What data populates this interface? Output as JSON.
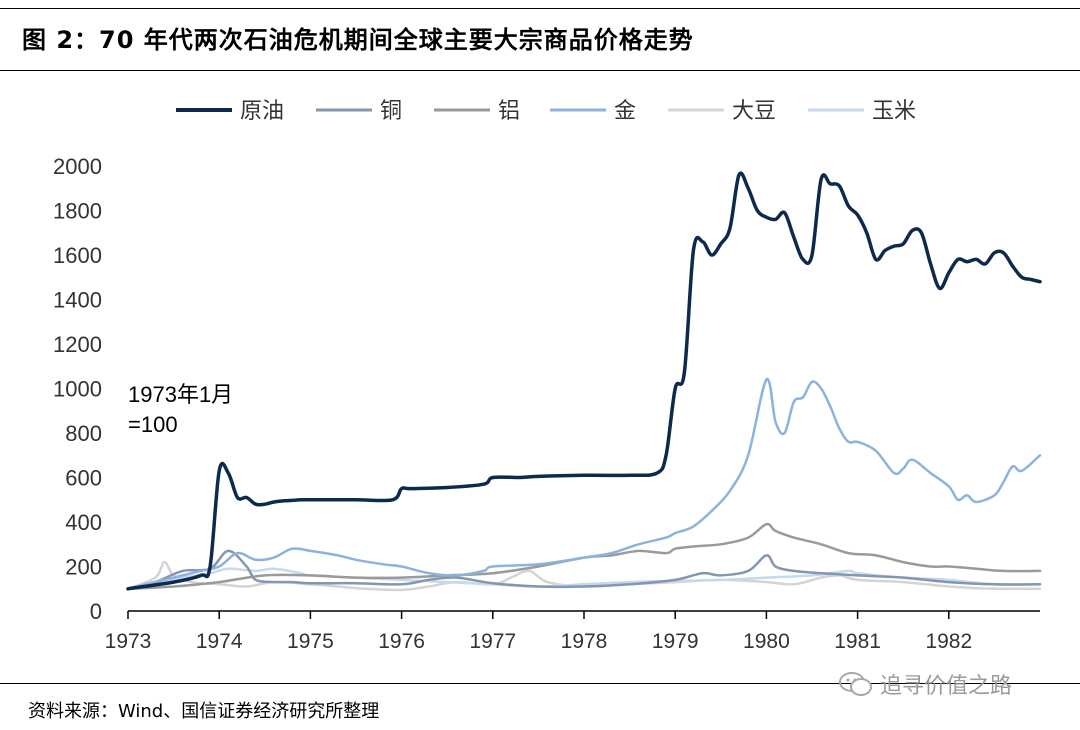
{
  "figure": {
    "title": "图 2：70 年代两次石油危机期间全球主要大宗商品价格走势",
    "source": "资料来源：Wind、国信证券经济研究所整理",
    "watermark": "追寻价值之路"
  },
  "chart_data": {
    "type": "line",
    "title": "",
    "xlabel": "",
    "ylabel": "",
    "xlim": [
      1973,
      1983
    ],
    "ylim": [
      0,
      2000
    ],
    "yticks": [
      0,
      200,
      400,
      600,
      800,
      1000,
      1200,
      1400,
      1600,
      1800,
      2000
    ],
    "xticks": [
      1973,
      1974,
      1975,
      1976,
      1977,
      1978,
      1979,
      1980,
      1981,
      1982
    ],
    "grid": false,
    "legend": "top",
    "annotation": [
      "1973年1月",
      "=100"
    ],
    "series": [
      {
        "name": "原油",
        "color": "#0d2a4d",
        "width": 3.5,
        "x": [
          1973.0,
          1973.5,
          1973.8,
          1973.9,
          1974.0,
          1974.1,
          1974.2,
          1974.3,
          1974.4,
          1974.5,
          1974.6,
          1974.7,
          1974.8,
          1974.9,
          1975.0,
          1975.5,
          1975.9,
          1976.0,
          1976.1,
          1976.5,
          1976.9,
          1977.0,
          1977.3,
          1977.5,
          1978.0,
          1978.5,
          1978.8,
          1978.9,
          1979.0,
          1979.1,
          1979.2,
          1979.3,
          1979.4,
          1979.5,
          1979.6,
          1979.7,
          1979.8,
          1979.9,
          1980.0,
          1980.1,
          1980.2,
          1980.3,
          1980.4,
          1980.5,
          1980.6,
          1980.7,
          1980.8,
          1980.9,
          1981.0,
          1981.1,
          1981.2,
          1981.3,
          1981.4,
          1981.5,
          1981.6,
          1981.7,
          1981.8,
          1981.9,
          1982.0,
          1982.1,
          1982.2,
          1982.3,
          1982.4,
          1982.5,
          1982.6,
          1982.7,
          1982.8,
          1982.9,
          1983.0
        ],
        "y": [
          100,
          130,
          160,
          200,
          630,
          620,
          510,
          510,
          480,
          480,
          490,
          495,
          497,
          500,
          500,
          500,
          500,
          550,
          550,
          555,
          570,
          600,
          600,
          605,
          610,
          610,
          620,
          700,
          1000,
          1070,
          1620,
          1660,
          1600,
          1650,
          1720,
          1960,
          1900,
          1800,
          1770,
          1760,
          1790,
          1680,
          1580,
          1600,
          1940,
          1920,
          1910,
          1820,
          1780,
          1700,
          1580,
          1620,
          1640,
          1650,
          1710,
          1700,
          1560,
          1450,
          1520,
          1580,
          1570,
          1580,
          1560,
          1610,
          1610,
          1550,
          1500,
          1490,
          1480
        ]
      },
      {
        "name": "铜",
        "color": "#8397b0",
        "width": 2.5,
        "x": [
          1973.0,
          1973.3,
          1973.6,
          1973.9,
          1974.1,
          1974.3,
          1974.4,
          1974.6,
          1974.8,
          1975.0,
          1975.5,
          1976.0,
          1976.3,
          1976.6,
          1977.0,
          1977.5,
          1978.0,
          1978.5,
          1979.0,
          1979.3,
          1979.5,
          1979.8,
          1980.0,
          1980.1,
          1980.3,
          1980.6,
          1981.0,
          1981.5,
          1982.0,
          1982.5,
          1983.0
        ],
        "y": [
          100,
          130,
          180,
          190,
          270,
          200,
          140,
          130,
          130,
          125,
          125,
          120,
          140,
          150,
          125,
          110,
          110,
          120,
          140,
          170,
          160,
          180,
          250,
          200,
          180,
          170,
          160,
          150,
          130,
          120,
          120
        ]
      },
      {
        "name": "铝",
        "color": "#9a9a9a",
        "width": 2.5,
        "x": [
          1973.0,
          1973.5,
          1974.0,
          1974.5,
          1975.0,
          1975.5,
          1976.0,
          1976.5,
          1977.0,
          1977.5,
          1978.0,
          1978.3,
          1978.6,
          1978.9,
          1979.0,
          1979.2,
          1979.5,
          1979.8,
          1980.0,
          1980.1,
          1980.3,
          1980.6,
          1980.9,
          1981.2,
          1981.5,
          1981.8,
          1982.0,
          1982.3,
          1982.6,
          1983.0
        ],
        "y": [
          100,
          110,
          130,
          160,
          160,
          150,
          150,
          160,
          170,
          200,
          240,
          250,
          270,
          260,
          280,
          290,
          300,
          330,
          390,
          360,
          330,
          300,
          260,
          250,
          220,
          200,
          200,
          190,
          180,
          180
        ]
      },
      {
        "name": "金",
        "color": "#8eb2de",
        "width": 2.5,
        "x": [
          1973.0,
          1973.3,
          1973.6,
          1973.8,
          1974.0,
          1974.2,
          1974.4,
          1974.6,
          1974.8,
          1975.0,
          1975.3,
          1975.5,
          1975.8,
          1976.0,
          1976.3,
          1976.6,
          1976.9,
          1977.0,
          1977.5,
          1978.0,
          1978.3,
          1978.6,
          1978.9,
          1979.0,
          1979.2,
          1979.4,
          1979.6,
          1979.8,
          1980.0,
          1980.1,
          1980.2,
          1980.3,
          1980.4,
          1980.5,
          1980.6,
          1980.7,
          1980.8,
          1980.9,
          1981.0,
          1981.2,
          1981.4,
          1981.5,
          1981.6,
          1981.8,
          1982.0,
          1982.1,
          1982.2,
          1982.3,
          1982.5,
          1982.6,
          1982.7,
          1982.8,
          1983.0
        ],
        "y": [
          100,
          130,
          160,
          180,
          200,
          260,
          230,
          240,
          280,
          270,
          250,
          230,
          210,
          200,
          170,
          160,
          180,
          200,
          210,
          240,
          260,
          300,
          330,
          350,
          380,
          450,
          540,
          700,
          1040,
          850,
          800,
          940,
          960,
          1030,
          1000,
          920,
          820,
          760,
          760,
          720,
          620,
          640,
          680,
          620,
          560,
          500,
          520,
          490,
          520,
          580,
          650,
          630,
          700
        ]
      },
      {
        "name": "大豆",
        "color": "#d4d4d4",
        "width": 2.5,
        "x": [
          1973.0,
          1973.3,
          1973.4,
          1973.5,
          1973.7,
          1974.0,
          1974.3,
          1974.6,
          1975.0,
          1975.3,
          1975.6,
          1976.0,
          1976.3,
          1976.6,
          1977.0,
          1977.2,
          1977.4,
          1977.6,
          1978.0,
          1978.5,
          1979.0,
          1979.5,
          1980.0,
          1980.3,
          1980.6,
          1980.8,
          1981.0,
          1981.5,
          1982.0,
          1982.5,
          1983.0
        ],
        "y": [
          100,
          150,
          220,
          160,
          130,
          120,
          110,
          130,
          120,
          110,
          100,
          95,
          110,
          130,
          120,
          150,
          180,
          130,
          110,
          120,
          130,
          140,
          130,
          120,
          150,
          160,
          140,
          130,
          110,
          100,
          100
        ]
      },
      {
        "name": "玉米",
        "color": "#c7d9ee",
        "width": 2.5,
        "x": [
          1973.0,
          1973.3,
          1973.6,
          1973.9,
          1974.1,
          1974.4,
          1974.6,
          1974.9,
          1975.0,
          1975.5,
          1976.0,
          1976.5,
          1977.0,
          1977.5,
          1978.0,
          1978.5,
          1979.0,
          1979.5,
          1980.0,
          1980.5,
          1980.9,
          1981.0,
          1981.5,
          1982.0,
          1982.5,
          1983.0
        ],
        "y": [
          100,
          120,
          150,
          170,
          190,
          180,
          190,
          170,
          160,
          150,
          140,
          130,
          120,
          110,
          120,
          130,
          135,
          140,
          150,
          160,
          180,
          170,
          150,
          140,
          120,
          120
        ]
      }
    ]
  }
}
